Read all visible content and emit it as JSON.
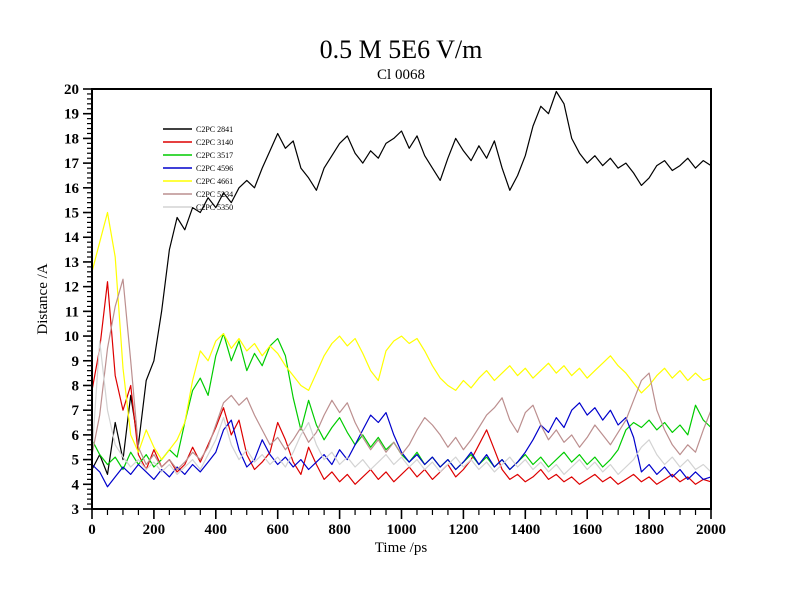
{
  "page": {
    "background": "#ffffff"
  },
  "chart_data": {
    "type": "line",
    "title": "0.5 M 5E6 V/m",
    "subtitle": "Cl 0068",
    "xlabel": "Time /ps",
    "ylabel": "Distance /A",
    "xlim": [
      0,
      2000
    ],
    "ylim": [
      3,
      20
    ],
    "x_major_step": 200,
    "x_minor_step": 50,
    "y_major_step": 1,
    "y_minor_step": 0.2,
    "grid": false,
    "frame": "box",
    "legend_position": "upper-left-inside",
    "x": [
      0,
      25,
      50,
      75,
      100,
      125,
      150,
      175,
      200,
      225,
      250,
      275,
      300,
      325,
      350,
      375,
      400,
      425,
      450,
      475,
      500,
      525,
      550,
      575,
      600,
      625,
      650,
      675,
      700,
      725,
      750,
      775,
      800,
      825,
      850,
      875,
      900,
      925,
      950,
      975,
      1000,
      1025,
      1050,
      1075,
      1100,
      1125,
      1150,
      1175,
      1200,
      1225,
      1250,
      1275,
      1300,
      1325,
      1350,
      1375,
      1400,
      1425,
      1450,
      1475,
      1500,
      1525,
      1550,
      1575,
      1600,
      1625,
      1650,
      1675,
      1700,
      1725,
      1750,
      1775,
      1800,
      1825,
      1850,
      1875,
      1900,
      1925,
      1950,
      1975,
      2000
    ],
    "series": [
      {
        "name": "C2PC 2841",
        "color": "#000000",
        "values": [
          4.6,
          5.2,
          4.4,
          6.5,
          5.0,
          7.6,
          5.6,
          8.2,
          9.0,
          11.0,
          13.5,
          14.8,
          14.3,
          15.2,
          15.0,
          15.6,
          15.2,
          15.8,
          15.4,
          16.0,
          16.3,
          16.0,
          16.8,
          17.5,
          18.2,
          17.6,
          17.9,
          16.8,
          16.4,
          15.9,
          16.8,
          17.3,
          17.8,
          18.1,
          17.4,
          17.0,
          17.5,
          17.2,
          17.8,
          18.0,
          18.3,
          17.6,
          18.1,
          17.3,
          16.8,
          16.3,
          17.2,
          18.0,
          17.5,
          17.1,
          17.7,
          17.2,
          17.9,
          16.8,
          15.9,
          16.5,
          17.3,
          18.5,
          19.3,
          19.0,
          19.9,
          19.4,
          18.0,
          17.4,
          17.0,
          17.3,
          16.9,
          17.2,
          16.8,
          17.0,
          16.6,
          16.1,
          16.4,
          16.9,
          17.1,
          16.7,
          16.9,
          17.2,
          16.8,
          17.1,
          16.9
        ]
      },
      {
        "name": "C2PC 3140",
        "color": "#dd0000",
        "values": [
          7.8,
          9.5,
          12.2,
          8.4,
          7.0,
          8.0,
          5.2,
          4.6,
          5.4,
          4.7,
          5.0,
          4.5,
          4.8,
          5.5,
          4.9,
          5.6,
          6.3,
          7.1,
          6.0,
          6.6,
          5.2,
          4.6,
          4.9,
          5.3,
          6.5,
          5.8,
          4.9,
          4.4,
          5.5,
          4.8,
          4.2,
          4.5,
          4.1,
          4.4,
          4.0,
          4.3,
          4.6,
          4.2,
          4.5,
          4.1,
          4.4,
          4.7,
          4.3,
          4.6,
          4.2,
          4.5,
          4.8,
          4.3,
          4.6,
          5.0,
          5.6,
          6.2,
          5.4,
          4.6,
          4.2,
          4.4,
          4.1,
          4.3,
          4.6,
          4.2,
          4.4,
          4.1,
          4.3,
          4.0,
          4.2,
          4.4,
          4.1,
          4.3,
          4.0,
          4.2,
          4.4,
          4.1,
          4.3,
          4.0,
          4.2,
          4.4,
          4.1,
          4.3,
          4.0,
          4.2,
          4.1
        ]
      },
      {
        "name": "C2PC 3517",
        "color": "#00cc00",
        "values": [
          5.8,
          5.2,
          4.8,
          5.1,
          4.6,
          5.3,
          4.8,
          5.2,
          4.7,
          5.0,
          5.4,
          5.1,
          6.5,
          7.8,
          8.3,
          7.6,
          9.2,
          10.1,
          9.0,
          9.8,
          8.6,
          9.3,
          8.8,
          9.6,
          9.9,
          9.2,
          7.5,
          6.2,
          7.4,
          6.4,
          5.8,
          6.3,
          6.7,
          6.1,
          5.6,
          6.0,
          5.5,
          5.9,
          5.4,
          5.7,
          5.2,
          4.9,
          5.3,
          4.8,
          5.1,
          4.7,
          5.0,
          4.6,
          4.9,
          5.2,
          4.8,
          5.1,
          4.7,
          5.0,
          4.6,
          4.9,
          5.2,
          4.8,
          5.1,
          4.7,
          5.0,
          5.3,
          4.9,
          5.2,
          4.8,
          5.1,
          4.7,
          5.0,
          5.4,
          6.2,
          6.5,
          6.3,
          6.6,
          6.2,
          6.5,
          6.1,
          6.4,
          6.0,
          7.2,
          6.6,
          6.3
        ]
      },
      {
        "name": "C2PC 4596",
        "color": "#0000cc",
        "values": [
          4.8,
          4.5,
          3.9,
          4.3,
          4.7,
          4.4,
          4.8,
          4.5,
          4.2,
          4.6,
          4.3,
          4.7,
          4.4,
          4.8,
          4.5,
          4.9,
          5.3,
          6.2,
          6.6,
          5.4,
          4.7,
          5.0,
          5.8,
          5.2,
          4.8,
          5.1,
          4.7,
          5.0,
          4.6,
          4.9,
          5.2,
          4.8,
          5.4,
          5.0,
          5.6,
          6.2,
          6.8,
          6.5,
          6.9,
          6.0,
          5.3,
          4.9,
          5.2,
          4.8,
          5.1,
          4.7,
          5.0,
          4.6,
          4.9,
          5.3,
          4.8,
          5.2,
          4.7,
          5.0,
          4.6,
          4.9,
          5.3,
          5.8,
          6.4,
          6.1,
          6.7,
          6.3,
          7.0,
          7.3,
          6.8,
          7.1,
          6.6,
          7.0,
          6.4,
          6.7,
          5.9,
          4.5,
          4.8,
          4.4,
          4.7,
          4.3,
          4.6,
          4.2,
          4.5,
          4.2,
          4.3
        ]
      },
      {
        "name": "C2PC 4661",
        "color": "#ffff00",
        "values": [
          12.6,
          13.8,
          15.0,
          13.2,
          8.7,
          6.0,
          5.3,
          6.2,
          5.5,
          5.0,
          5.4,
          5.8,
          6.5,
          8.2,
          9.4,
          9.0,
          9.8,
          10.1,
          9.5,
          9.9,
          9.4,
          9.7,
          9.2,
          9.6,
          9.3,
          8.8,
          8.4,
          8.0,
          7.8,
          8.5,
          9.2,
          9.7,
          10.0,
          9.6,
          9.9,
          9.3,
          8.6,
          8.2,
          9.4,
          9.8,
          10.0,
          9.7,
          9.9,
          9.4,
          8.8,
          8.3,
          8.0,
          7.8,
          8.2,
          7.9,
          8.3,
          8.6,
          8.2,
          8.5,
          8.8,
          8.4,
          8.7,
          8.3,
          8.6,
          8.9,
          8.5,
          8.8,
          8.4,
          8.7,
          8.3,
          8.6,
          8.9,
          9.2,
          8.8,
          8.5,
          8.1,
          7.7,
          8.0,
          8.4,
          8.7,
          8.3,
          8.6,
          8.2,
          8.5,
          8.2,
          8.3
        ]
      },
      {
        "name": "C2PC 5234",
        "color": "#bc8f8f",
        "values": [
          5.2,
          6.8,
          9.5,
          11.2,
          12.3,
          9.0,
          5.5,
          4.8,
          5.2,
          4.7,
          5.0,
          4.6,
          4.9,
          5.3,
          5.0,
          5.5,
          6.4,
          7.3,
          7.6,
          7.2,
          7.5,
          6.8,
          6.2,
          5.6,
          5.9,
          5.4,
          5.8,
          6.3,
          5.7,
          6.1,
          6.8,
          7.4,
          6.9,
          7.3,
          6.5,
          5.9,
          5.4,
          5.8,
          5.3,
          5.7,
          5.2,
          5.6,
          6.2,
          6.7,
          6.4,
          6.0,
          5.5,
          5.9,
          5.4,
          5.8,
          6.3,
          6.8,
          7.1,
          7.5,
          6.6,
          6.1,
          6.9,
          7.2,
          6.4,
          5.8,
          6.2,
          5.7,
          6.0,
          5.5,
          5.9,
          6.4,
          6.0,
          5.6,
          6.1,
          6.6,
          7.4,
          8.2,
          8.5,
          7.0,
          6.2,
          5.6,
          5.2,
          5.6,
          5.3,
          6.2,
          7.0
        ]
      },
      {
        "name": "C2PC 5350",
        "color": "#d3d3d3",
        "values": [
          5.2,
          9.8,
          7.0,
          5.6,
          5.1,
          4.7,
          5.0,
          4.6,
          4.9,
          4.5,
          4.8,
          4.4,
          4.7,
          5.0,
          4.6,
          5.2,
          5.8,
          6.7,
          5.6,
          5.0,
          5.4,
          4.9,
          5.2,
          4.8,
          5.1,
          4.7,
          5.3,
          6.0,
          6.5,
          5.6,
          5.0,
          5.3,
          4.8,
          5.1,
          4.7,
          5.0,
          4.6,
          4.9,
          5.2,
          4.8,
          5.1,
          4.7,
          5.0,
          4.6,
          4.9,
          4.5,
          4.8,
          5.1,
          4.7,
          5.0,
          4.6,
          4.9,
          4.5,
          4.8,
          5.1,
          4.7,
          5.0,
          4.6,
          4.9,
          4.5,
          4.8,
          4.4,
          4.7,
          5.0,
          4.6,
          4.9,
          4.5,
          4.8,
          4.4,
          4.7,
          5.0,
          5.5,
          5.8,
          5.2,
          4.8,
          5.1,
          4.7,
          5.0,
          4.6,
          4.8,
          4.5
        ]
      }
    ]
  }
}
